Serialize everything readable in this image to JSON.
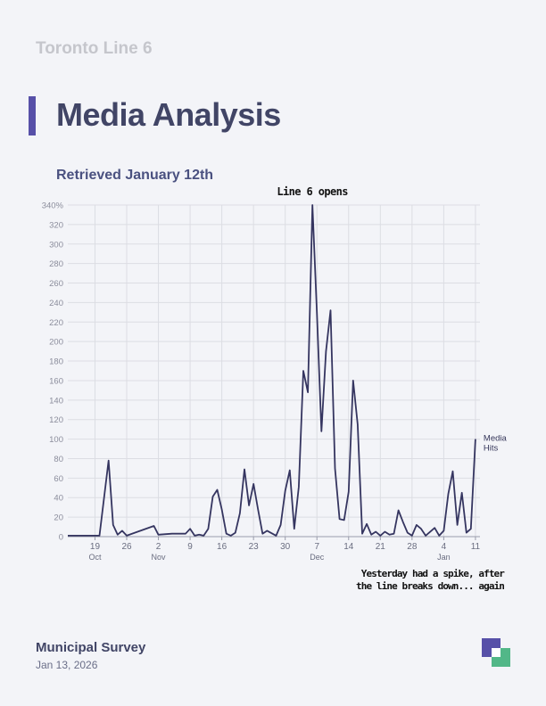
{
  "header": {
    "eyebrow": "Toronto Line 6",
    "title": "Media Analysis",
    "subtitle": "Retrieved January 12th"
  },
  "footer": {
    "organization": "Municipal Survey",
    "date": "Jan 13, 2026"
  },
  "colors": {
    "line": "#353560",
    "grid": "#dcdde3",
    "accent": "#5750a8",
    "logo_secondary": "#52b788"
  },
  "chart_data": {
    "type": "line",
    "x_start": "2025-10-13",
    "x_end": "2026-01-12",
    "ylim": [
      0,
      340
    ],
    "y_ticks": [
      "0",
      "20",
      "40",
      "60",
      "80",
      "100",
      "120",
      "140",
      "160",
      "180",
      "200",
      "220",
      "240",
      "260",
      "280",
      "300",
      "320",
      "340%"
    ],
    "x_ticks": [
      {
        "date": "2025-10-19",
        "label": "19",
        "month": "Oct"
      },
      {
        "date": "2025-10-26",
        "label": "26",
        "month": ""
      },
      {
        "date": "2025-11-02",
        "label": "2",
        "month": "Nov"
      },
      {
        "date": "2025-11-09",
        "label": "9",
        "month": ""
      },
      {
        "date": "2025-11-16",
        "label": "16",
        "month": ""
      },
      {
        "date": "2025-11-23",
        "label": "23",
        "month": ""
      },
      {
        "date": "2025-11-30",
        "label": "30",
        "month": ""
      },
      {
        "date": "2025-12-07",
        "label": "7",
        "month": "Dec"
      },
      {
        "date": "2025-12-14",
        "label": "14",
        "month": ""
      },
      {
        "date": "2025-12-21",
        "label": "21",
        "month": ""
      },
      {
        "date": "2025-12-28",
        "label": "28",
        "month": ""
      },
      {
        "date": "2026-01-04",
        "label": "4",
        "month": "Jan"
      },
      {
        "date": "2026-01-11",
        "label": "11",
        "month": ""
      }
    ],
    "series": [
      {
        "name": "Media Hits",
        "points": [
          [
            "2025-10-13",
            1
          ],
          [
            "2025-10-16",
            1
          ],
          [
            "2025-10-18",
            1
          ],
          [
            "2025-10-20",
            1
          ],
          [
            "2025-10-22",
            78
          ],
          [
            "2025-10-23",
            12
          ],
          [
            "2025-10-24",
            2
          ],
          [
            "2025-10-25",
            6
          ],
          [
            "2025-10-26",
            1
          ],
          [
            "2025-11-01",
            11
          ],
          [
            "2025-11-02",
            2
          ],
          [
            "2025-11-05",
            3
          ],
          [
            "2025-11-08",
            3
          ],
          [
            "2025-11-09",
            8
          ],
          [
            "2025-11-10",
            1
          ],
          [
            "2025-11-11",
            2
          ],
          [
            "2025-11-12",
            1
          ],
          [
            "2025-11-13",
            8
          ],
          [
            "2025-11-14",
            41
          ],
          [
            "2025-11-15",
            48
          ],
          [
            "2025-11-16",
            28
          ],
          [
            "2025-11-17",
            3
          ],
          [
            "2025-11-18",
            1
          ],
          [
            "2025-11-19",
            4
          ],
          [
            "2025-11-20",
            24
          ],
          [
            "2025-11-21",
            69
          ],
          [
            "2025-11-22",
            32
          ],
          [
            "2025-11-23",
            54
          ],
          [
            "2025-11-24",
            28
          ],
          [
            "2025-11-25",
            3
          ],
          [
            "2025-11-26",
            6
          ],
          [
            "2025-11-28",
            1
          ],
          [
            "2025-11-29",
            12
          ],
          [
            "2025-11-30",
            47
          ],
          [
            "2025-12-01",
            68
          ],
          [
            "2025-12-02",
            8
          ],
          [
            "2025-12-03",
            51
          ],
          [
            "2025-12-04",
            170
          ],
          [
            "2025-12-05",
            148
          ],
          [
            "2025-12-06",
            340
          ],
          [
            "2025-12-07",
            230
          ],
          [
            "2025-12-08",
            108
          ],
          [
            "2025-12-09",
            190
          ],
          [
            "2025-12-10",
            232
          ],
          [
            "2025-12-11",
            70
          ],
          [
            "2025-12-12",
            18
          ],
          [
            "2025-12-13",
            17
          ],
          [
            "2025-12-14",
            46
          ],
          [
            "2025-12-15",
            160
          ],
          [
            "2025-12-16",
            115
          ],
          [
            "2025-12-17",
            3
          ],
          [
            "2025-12-18",
            13
          ],
          [
            "2025-12-19",
            2
          ],
          [
            "2025-12-20",
            5
          ],
          [
            "2025-12-21",
            1
          ],
          [
            "2025-12-22",
            5
          ],
          [
            "2025-12-23",
            2
          ],
          [
            "2025-12-24",
            3
          ],
          [
            "2025-12-25",
            27
          ],
          [
            "2025-12-26",
            15
          ],
          [
            "2025-12-27",
            4
          ],
          [
            "2025-12-28",
            1
          ],
          [
            "2025-12-29",
            12
          ],
          [
            "2025-12-30",
            8
          ],
          [
            "2025-12-31",
            1
          ],
          [
            "2026-01-02",
            9
          ],
          [
            "2026-01-03",
            1
          ],
          [
            "2026-01-04",
            6
          ],
          [
            "2026-01-05",
            44
          ],
          [
            "2026-01-06",
            67
          ],
          [
            "2026-01-07",
            12
          ],
          [
            "2026-01-08",
            45
          ],
          [
            "2026-01-09",
            4
          ],
          [
            "2026-01-10",
            8
          ],
          [
            "2026-01-11",
            100
          ]
        ]
      }
    ],
    "annotations": [
      {
        "text": "Line 6 opens",
        "date": "2025-12-06"
      },
      {
        "text": "Yesterday had a spike, after",
        "date": "2026-01-11"
      },
      {
        "text": "the line breaks down... again",
        "date": "2026-01-11"
      }
    ]
  }
}
